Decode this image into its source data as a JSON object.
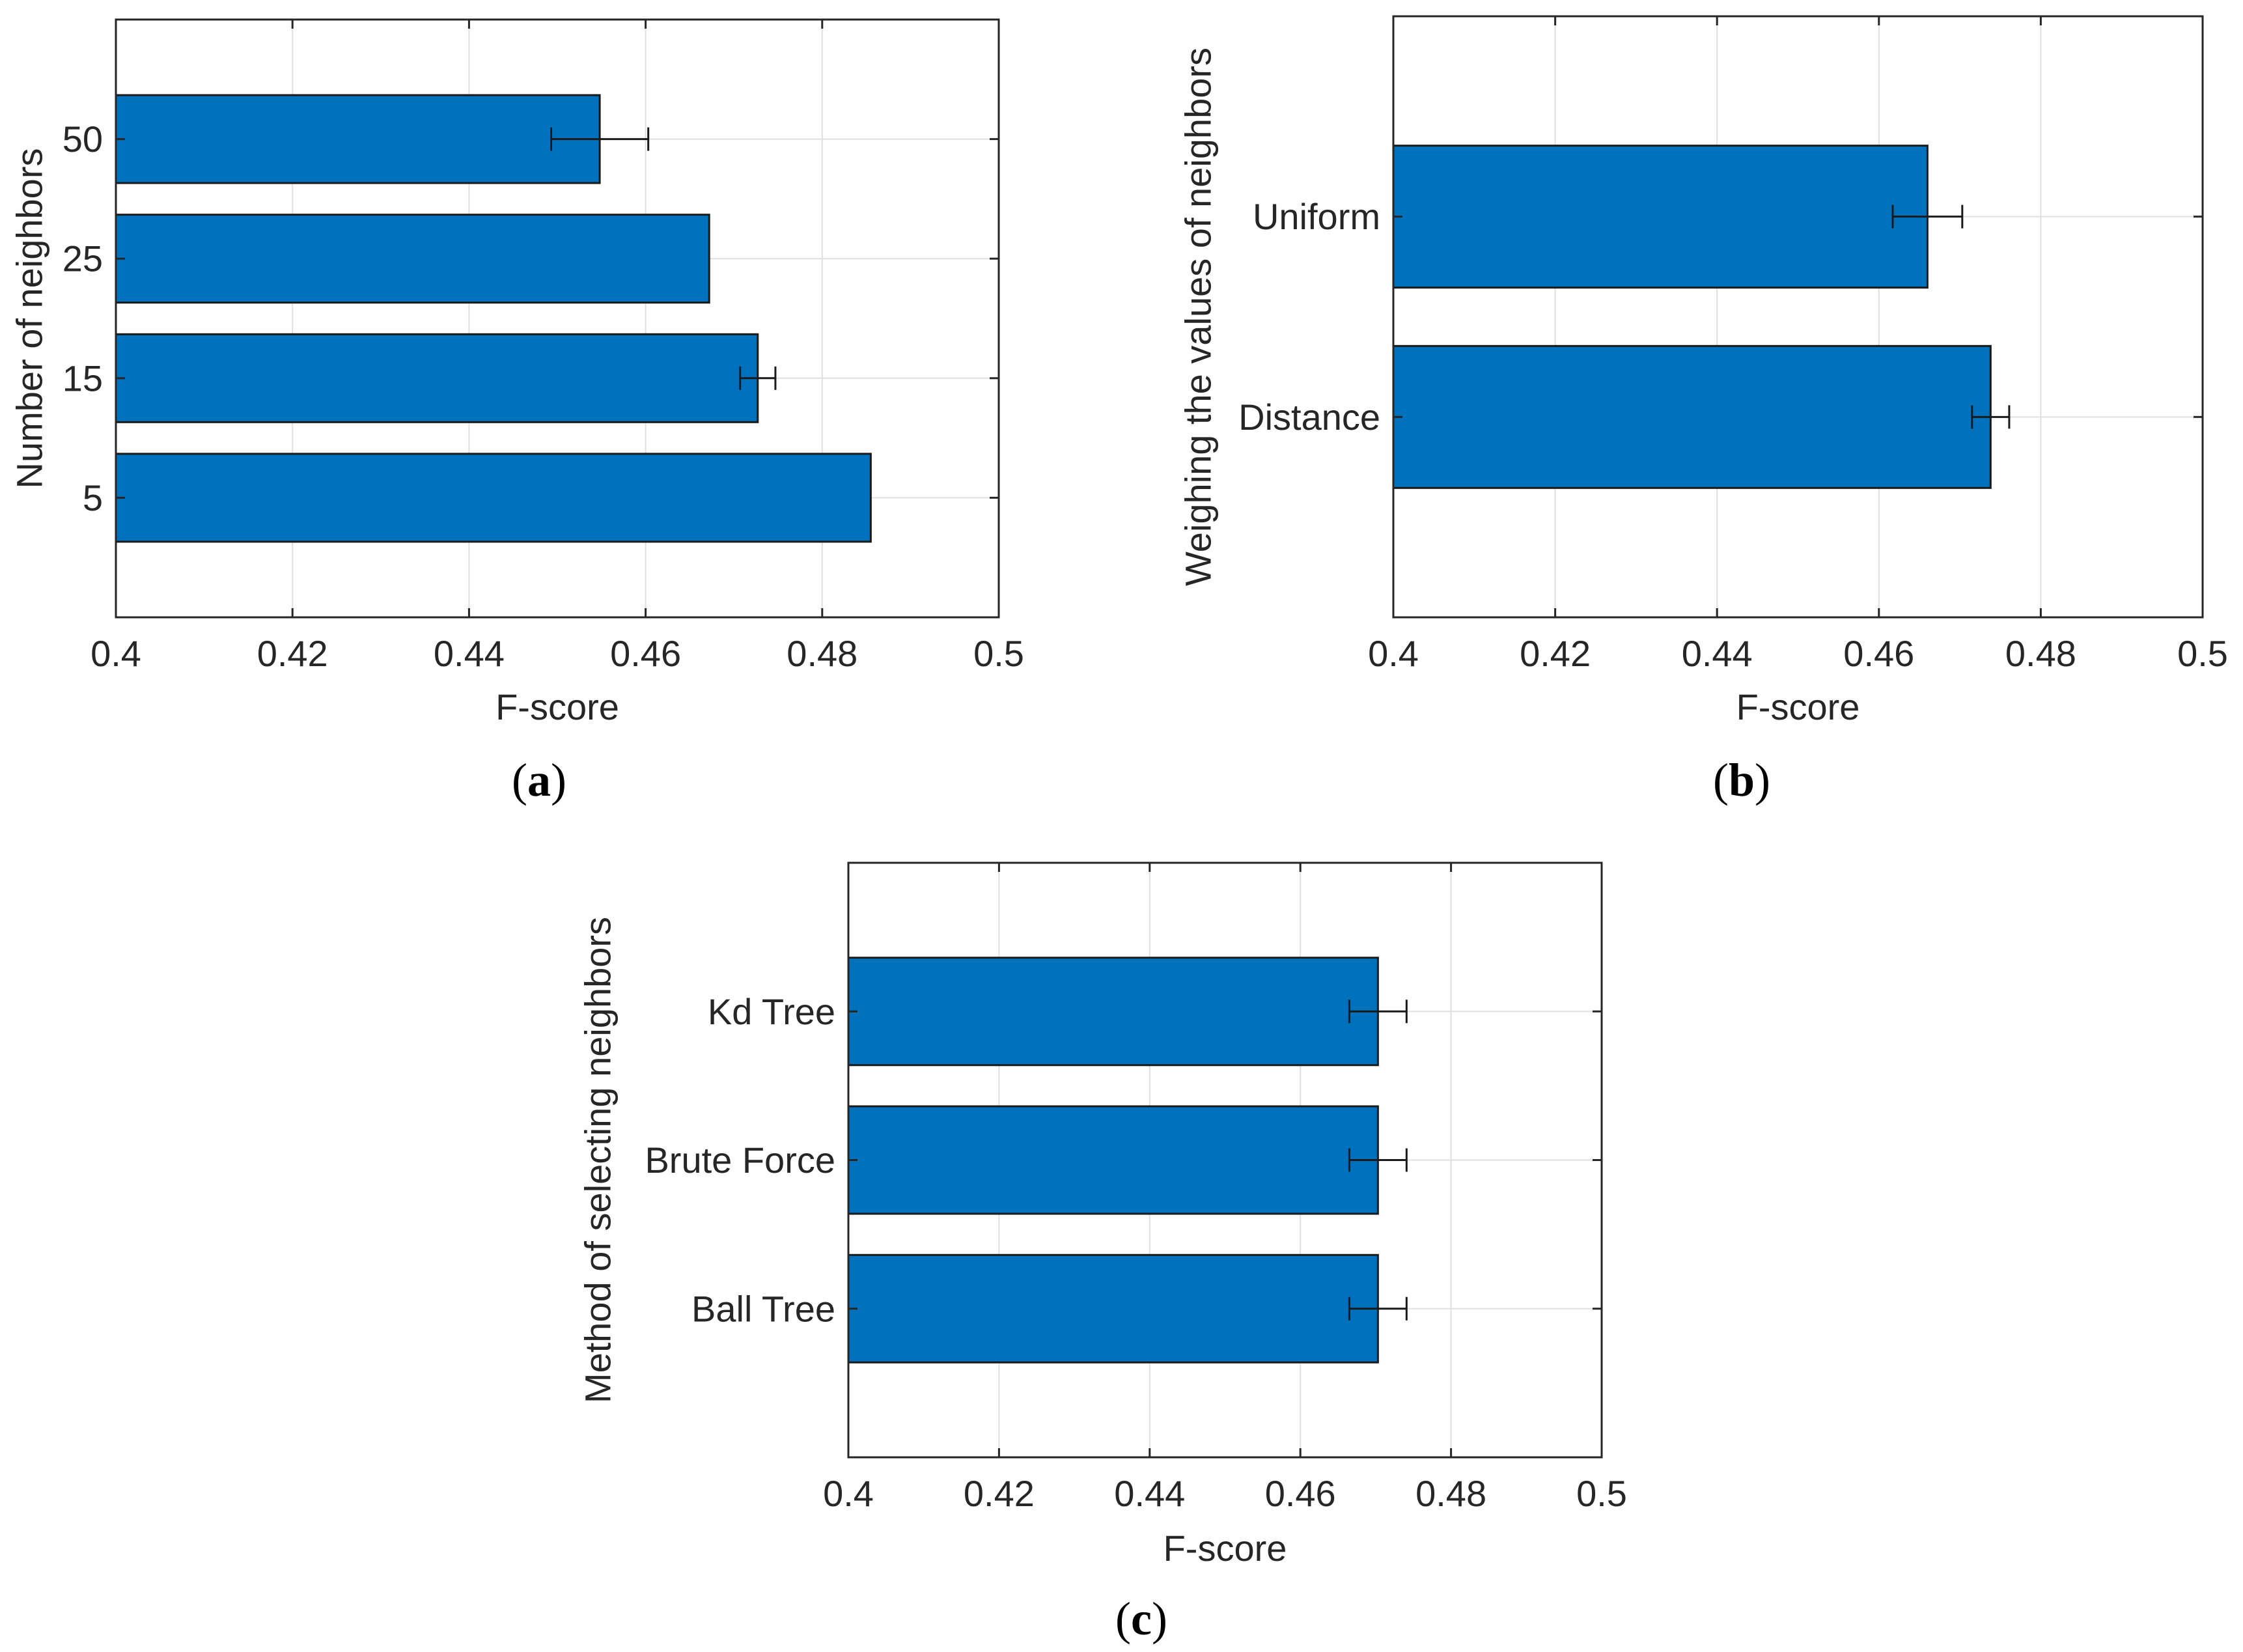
{
  "colors": {
    "bar_fill": "#0072BD",
    "bar_edge": "#1a1a1a",
    "grid": "#e0e0e0",
    "axis": "#262626",
    "error_bar": "#1a1a1a"
  },
  "chart_data": [
    {
      "panel": "a",
      "panel_label": "a",
      "type": "bar",
      "orientation": "horizontal",
      "title": "",
      "xlabel": "F-score",
      "ylabel": "Number of neighbors",
      "xlim": [
        0.4,
        0.5
      ],
      "xticks": [
        0.4,
        0.42,
        0.44,
        0.46,
        0.48,
        0.5
      ],
      "xtick_labels": [
        "0.4",
        "0.42",
        "0.44",
        "0.46",
        "0.48",
        "0.5"
      ],
      "ylim": [
        0,
        5
      ],
      "grid": true,
      "categories": [
        "5",
        "15",
        "25",
        "50"
      ],
      "values": [
        0.4855,
        0.4727,
        0.4672,
        0.4548
      ],
      "errors": [
        0,
        0.002,
        0,
        0.0055
      ]
    },
    {
      "panel": "b",
      "panel_label": "b",
      "type": "bar",
      "orientation": "horizontal",
      "title": "",
      "xlabel": "F-score",
      "ylabel": "Weighing the values of neighbors",
      "xlim": [
        0.4,
        0.5
      ],
      "xticks": [
        0.4,
        0.42,
        0.44,
        0.46,
        0.48,
        0.5
      ],
      "xtick_labels": [
        "0.4",
        "0.42",
        "0.44",
        "0.46",
        "0.48",
        "0.5"
      ],
      "ylim": [
        0,
        3
      ],
      "grid": true,
      "categories": [
        "Distance",
        "Uniform"
      ],
      "values": [
        0.4738,
        0.466
      ],
      "errors": [
        0.0023,
        0.0043
      ]
    },
    {
      "panel": "c",
      "panel_label": "c",
      "type": "bar",
      "orientation": "horizontal",
      "title": "",
      "xlabel": "F-score",
      "ylabel": "Method of selecting neighbors",
      "xlim": [
        0.4,
        0.5
      ],
      "xticks": [
        0.4,
        0.42,
        0.44,
        0.46,
        0.48,
        0.5
      ],
      "xtick_labels": [
        "0.4",
        "0.42",
        "0.44",
        "0.46",
        "0.48",
        "0.5"
      ],
      "ylim": [
        0,
        4
      ],
      "grid": true,
      "categories": [
        "Ball Tree",
        "Brute Force",
        "Kd Tree"
      ],
      "values": [
        0.4703,
        0.4703,
        0.4703
      ],
      "errors": [
        0.0038,
        0.0038,
        0.0038
      ]
    }
  ]
}
